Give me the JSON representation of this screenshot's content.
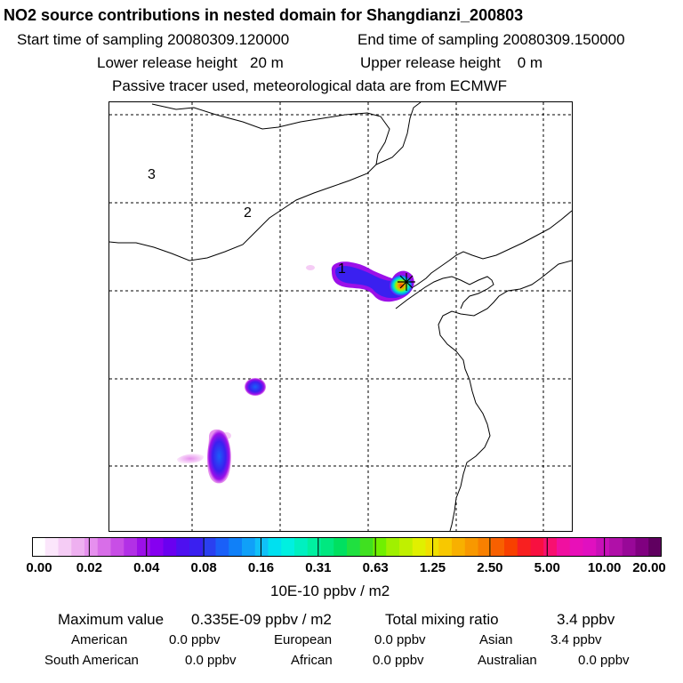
{
  "title": "NO2 source contributions in nested domain for Shangdianzi_200803",
  "header": {
    "start_time": "Start time of sampling 20080309.120000",
    "end_time": "End time of sampling 20080309.150000",
    "lower_height": "Lower release height   20 m",
    "upper_height": "Upper release height    0 m",
    "tracer_note": "Passive tracer used, meteorological data are from ECMWF"
  },
  "map": {
    "region_labels": [
      "1",
      "2",
      "3"
    ],
    "receptor": "Shangdianzi"
  },
  "colorbar": {
    "tick_labels": [
      "0.00",
      "0.02",
      "0.04",
      "0.08",
      "0.16",
      "0.31",
      "0.63",
      "1.25",
      "2.50",
      "5.00",
      "10.00",
      "20.00"
    ],
    "colors": [
      "#ffffff",
      "#fbe6fb",
      "#f5ccf5",
      "#eeb0f0",
      "#e690ee",
      "#d86ee8",
      "#c84ee6",
      "#b230e6",
      "#9c10e8",
      "#8600f0",
      "#6a00f0",
      "#4e10f0",
      "#3a20f0",
      "#2a40f0",
      "#1a60f8",
      "#1080f8",
      "#10a0f8",
      "#10c0f8",
      "#00e0f0",
      "#00f0e0",
      "#00f0c0",
      "#00f0a0",
      "#00e880",
      "#00e060",
      "#20e040",
      "#40e020",
      "#70f000",
      "#a0f000",
      "#c0f000",
      "#e0f000",
      "#f0e000",
      "#f8c800",
      "#f8b000",
      "#f89800",
      "#f88000",
      "#f86000",
      "#f84000",
      "#f82020",
      "#f81040",
      "#f81070",
      "#f010a0",
      "#e810b8",
      "#e010c0",
      "#c810b8",
      "#b010a8",
      "#980898",
      "#800080",
      "#600060"
    ],
    "unit": "10E-10 ppbv / m2"
  },
  "summary": {
    "max_label": "Maximum value",
    "max_value": "0.335E-09 ppbv / m2",
    "total_label": "Total mixing ratio",
    "total_value": "3.4 ppbv",
    "american_label": "American",
    "american_value": "0.0 ppbv",
    "european_label": "European",
    "european_value": "0.0 ppbv",
    "asian_label": "Asian",
    "asian_value": "3.4 ppbv",
    "south_american_label": "South American",
    "south_american_value": "0.0 ppbv",
    "african_label": "African",
    "african_value": "0.0 ppbv",
    "australian_label": "Australian",
    "australian_value": "0.0 ppbv"
  }
}
